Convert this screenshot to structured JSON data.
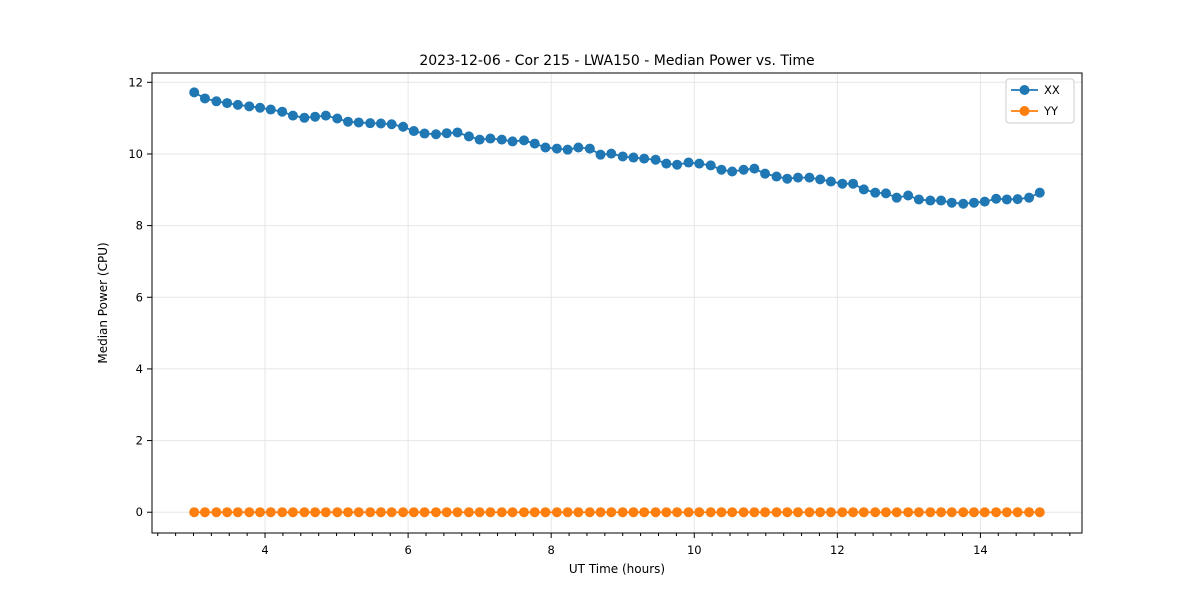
{
  "figure": {
    "background": "#ffffff",
    "title": "2023-12-06 - Cor 215 - LWA150 - Median Power vs. Time"
  },
  "chart_data": {
    "type": "line",
    "title": "2023-12-06 - Cor 215 - LWA150 - Median Power vs. Time",
    "xlabel": "UT Time (hours)",
    "ylabel": "Median Power (CPU)",
    "xlim": [
      2.42,
      15.42
    ],
    "ylim": [
      -0.58,
      12.26
    ],
    "x_ticks": [
      4,
      6,
      8,
      10,
      12,
      14
    ],
    "y_ticks": [
      0,
      2,
      4,
      6,
      8,
      10,
      12
    ],
    "x_minor_step": 0.25,
    "grid": true,
    "legend_position": "upper right",
    "colors": {
      "XX": "#1f77b4",
      "YY": "#ff7f0e",
      "grid": "#e6e6e6",
      "spine": "#000000",
      "legend_border": "#cccccc"
    },
    "x": [
      3.01,
      3.16,
      3.32,
      3.47,
      3.62,
      3.78,
      3.93,
      4.08,
      4.24,
      4.39,
      4.55,
      4.7,
      4.85,
      5.01,
      5.16,
      5.31,
      5.47,
      5.62,
      5.77,
      5.93,
      6.08,
      6.23,
      6.39,
      6.54,
      6.69,
      6.85,
      7.0,
      7.15,
      7.31,
      7.46,
      7.62,
      7.77,
      7.92,
      8.08,
      8.23,
      8.38,
      8.54,
      8.69,
      8.84,
      9.0,
      9.15,
      9.3,
      9.46,
      9.61,
      9.76,
      9.92,
      10.07,
      10.23,
      10.38,
      10.53,
      10.69,
      10.84,
      10.99,
      11.15,
      11.3,
      11.45,
      11.61,
      11.76,
      11.91,
      12.07,
      12.22,
      12.37,
      12.53,
      12.68,
      12.83,
      12.99,
      13.14,
      13.3,
      13.45,
      13.6,
      13.76,
      13.91,
      14.06,
      14.22,
      14.37,
      14.52,
      14.68,
      14.83
    ],
    "series": [
      {
        "name": "XX",
        "color": "#1f77b4",
        "values": [
          11.72,
          11.55,
          11.47,
          11.42,
          11.37,
          11.33,
          11.29,
          11.24,
          11.18,
          11.07,
          11.01,
          11.04,
          11.07,
          10.99,
          10.9,
          10.88,
          10.86,
          10.85,
          10.83,
          10.76,
          10.64,
          10.57,
          10.55,
          10.58,
          10.6,
          10.49,
          10.4,
          10.43,
          10.4,
          10.35,
          10.38,
          10.29,
          10.18,
          10.15,
          10.12,
          10.18,
          10.15,
          9.98,
          10.01,
          9.93,
          9.9,
          9.87,
          9.84,
          9.73,
          9.7,
          9.76,
          9.73,
          9.68,
          9.56,
          9.51,
          9.56,
          9.59,
          9.45,
          9.37,
          9.31,
          9.34,
          9.34,
          9.29,
          9.23,
          9.17,
          9.17,
          9.01,
          8.92,
          8.9,
          8.78,
          8.84,
          8.73,
          8.7,
          8.7,
          8.64,
          8.61,
          8.64,
          8.67,
          8.75,
          8.73,
          8.74,
          8.78,
          8.92
        ]
      },
      {
        "name": "YY",
        "color": "#ff7f0e",
        "values": [
          0,
          0,
          0,
          0,
          0,
          0,
          0,
          0,
          0,
          0,
          0,
          0,
          0,
          0,
          0,
          0,
          0,
          0,
          0,
          0,
          0,
          0,
          0,
          0,
          0,
          0,
          0,
          0,
          0,
          0,
          0,
          0,
          0,
          0,
          0,
          0,
          0,
          0,
          0,
          0,
          0,
          0,
          0,
          0,
          0,
          0,
          0,
          0,
          0,
          0,
          0,
          0,
          0,
          0,
          0,
          0,
          0,
          0,
          0,
          0,
          0,
          0,
          0,
          0,
          0,
          0,
          0,
          0,
          0,
          0,
          0,
          0,
          0,
          0,
          0,
          0,
          0,
          0
        ]
      }
    ]
  }
}
